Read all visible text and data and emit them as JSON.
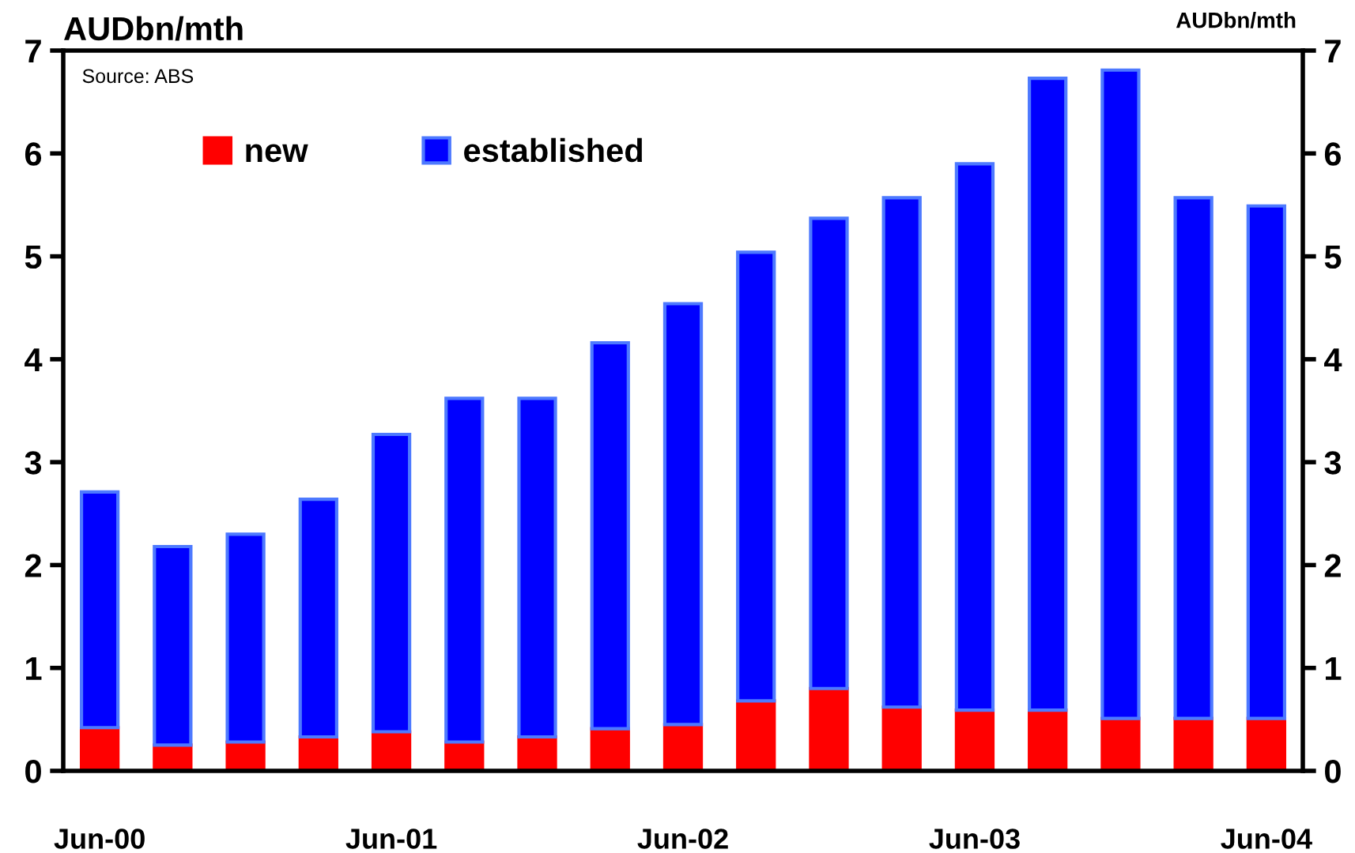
{
  "chart_data": {
    "type": "bar",
    "stacked": true,
    "ylabel": "AUDbn/mth",
    "y2label": "AUDbn/mth",
    "categories": [
      "Jun-00",
      null,
      null,
      null,
      "Jun-01",
      null,
      null,
      null,
      "Jun-02",
      null,
      null,
      null,
      "Jun-03",
      null,
      null,
      null,
      "Jun-04"
    ],
    "series": [
      {
        "name": "new",
        "color": "#ff0000",
        "values": [
          0.42,
          0.25,
          0.28,
          0.33,
          0.38,
          0.28,
          0.33,
          0.41,
          0.45,
          0.68,
          0.8,
          0.62,
          0.59,
          0.59,
          0.51,
          0.51,
          0.51
        ]
      },
      {
        "name": "established",
        "color": "#0000ff",
        "values": [
          2.29,
          1.93,
          2.02,
          2.31,
          2.89,
          3.34,
          3.29,
          3.75,
          4.09,
          4.36,
          4.57,
          4.95,
          5.31,
          6.14,
          6.3,
          5.06,
          4.98
        ]
      }
    ],
    "ylim": [
      0,
      7
    ],
    "yticks": [
      0,
      1,
      2,
      3,
      4,
      5,
      6,
      7
    ],
    "y2lim": [
      0,
      7
    ],
    "y2ticks": [
      0,
      1,
      2,
      3,
      4,
      5,
      6,
      7
    ],
    "legend": "top left",
    "grid": false,
    "annotations": [
      "Source: ABS"
    ]
  }
}
